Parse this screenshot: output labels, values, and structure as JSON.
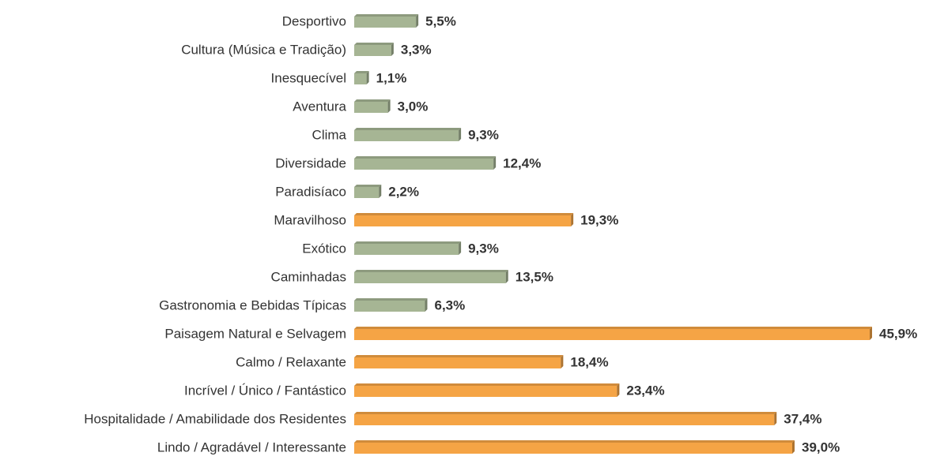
{
  "chart_data": {
    "type": "bar",
    "categories": [
      "Desportivo",
      "Cultura (Música e Tradição)",
      "Inesquecível",
      "Aventura",
      "Clima",
      "Diversidade",
      "Paradisíaco",
      "Maravilhoso",
      "Exótico",
      "Caminhadas",
      "Gastronomia e Bebidas Típicas",
      "Paisagem Natural e Selvagem",
      "Calmo / Relaxante",
      "Incrível / Único / Fantástico",
      "Hospitalidade / Amabilidade dos Residentes",
      "Lindo / Agradável / Interessante"
    ],
    "values": [
      5.5,
      3.3,
      1.1,
      3.0,
      9.3,
      12.4,
      2.2,
      19.3,
      9.3,
      13.5,
      6.3,
      45.9,
      18.4,
      23.4,
      37.4,
      39.0
    ],
    "value_labels": [
      "5,5%",
      "3,3%",
      "1,1%",
      "3,0%",
      "9,3%",
      "12,4%",
      "2,2%",
      "19,3%",
      "9,3%",
      "13,5%",
      "6,3%",
      "45,9%",
      "18,4%",
      "23,4%",
      "37,4%",
      "39,0%"
    ],
    "colors": [
      "#a6b594",
      "#a6b594",
      "#a6b594",
      "#a6b594",
      "#a6b594",
      "#a6b594",
      "#a6b594",
      "#f5a445",
      "#a6b594",
      "#a6b594",
      "#a6b594",
      "#f5a445",
      "#f5a445",
      "#f5a445",
      "#f5a445",
      "#f5a445"
    ]
  }
}
